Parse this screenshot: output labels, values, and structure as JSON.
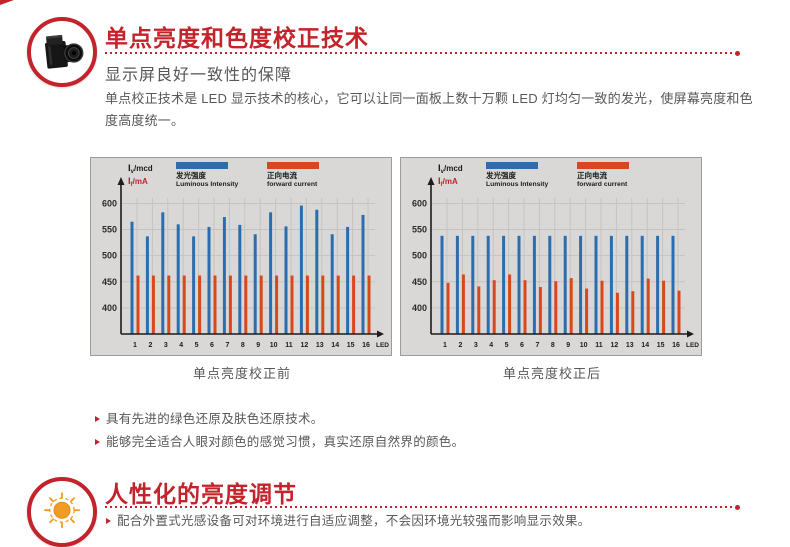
{
  "colors": {
    "accent_red": "#c3232a",
    "text_gray": "#595757",
    "bar_blue": "#2b6dae",
    "bar_orange": "#d7491d",
    "chart_bg": "#d9d8d6",
    "chart_border": "#9c9c9c",
    "chart_grid": "#c4c3c1"
  },
  "section1": {
    "icon": "camera-icon",
    "title": "单点亮度和色度校正技术",
    "subtitle": "显示屏良好一致性的保障",
    "body": "单点校正技术是 LED 显示技术的核心，它可以让同一面板上数十万颗 LED 灯均匀一致的发光，使屏幕亮度和色度高度统一。",
    "bullets": [
      "具有先进的绿色还原及肤色还原技术。",
      "能够完全适合人眼对颜色的感觉习惯，真实还原自然界的颜色。"
    ]
  },
  "section2": {
    "icon": "sun-icon",
    "title": "人性化的亮度调节",
    "bullets": [
      "配合外置式光感设备可对环境进行自适应调整，不会因环境光较强而影响显示效果。"
    ]
  },
  "chart_data": [
    {
      "type": "bar",
      "title": "单点亮度校正前",
      "x_axis_label": "LED",
      "y_axis_labels": [
        {
          "base": "I",
          "sub": "v",
          "unit": "/mcd",
          "color": "#1c1c1c"
        },
        {
          "base": "I",
          "sub": "f",
          "unit": "/mA",
          "color": "#c3232a"
        }
      ],
      "ylim": [
        350,
        620
      ],
      "y_ticks": [
        400,
        450,
        500,
        550,
        600
      ],
      "grid": true,
      "legend_position": "top",
      "categories": [
        "1",
        "2",
        "3",
        "4",
        "5",
        "6",
        "7",
        "8",
        "9",
        "10",
        "11",
        "12",
        "13",
        "14",
        "15",
        "16"
      ],
      "series": [
        {
          "name": "发光强度",
          "name_en": "Luminous Intensity",
          "color": "#2b6dae",
          "values": [
            565,
            537,
            583,
            560,
            537,
            555,
            574,
            559,
            541,
            583,
            556,
            596,
            588,
            541,
            555,
            578
          ]
        },
        {
          "name": "正向电流",
          "name_en": "forward current",
          "color": "#d7491d",
          "values": [
            462,
            462,
            462,
            462,
            462,
            462,
            462,
            462,
            462,
            462,
            462,
            462,
            462,
            462,
            462,
            462
          ]
        }
      ]
    },
    {
      "type": "bar",
      "title": "单点亮度校正后",
      "x_axis_label": "LED",
      "y_axis_labels": [
        {
          "base": "I",
          "sub": "v",
          "unit": "/mcd",
          "color": "#1c1c1c"
        },
        {
          "base": "I",
          "sub": "f",
          "unit": "/mA",
          "color": "#c3232a"
        }
      ],
      "ylim": [
        350,
        620
      ],
      "y_ticks": [
        400,
        450,
        500,
        550,
        600
      ],
      "grid": true,
      "legend_position": "top",
      "categories": [
        "1",
        "2",
        "3",
        "4",
        "5",
        "6",
        "7",
        "8",
        "9",
        "10",
        "11",
        "12",
        "13",
        "14",
        "15",
        "16"
      ],
      "series": [
        {
          "name": "发光强度",
          "name_en": "Luminous Intensity",
          "color": "#2b6dae",
          "values": [
            538,
            538,
            538,
            538,
            538,
            538,
            538,
            538,
            538,
            538,
            538,
            538,
            538,
            538,
            538,
            538
          ]
        },
        {
          "name": "正向电流",
          "name_en": "forward current",
          "color": "#d7491d",
          "values": [
            448,
            464,
            441,
            453,
            464,
            453,
            440,
            451,
            457,
            437,
            452,
            429,
            432,
            456,
            452,
            433
          ]
        }
      ]
    }
  ]
}
